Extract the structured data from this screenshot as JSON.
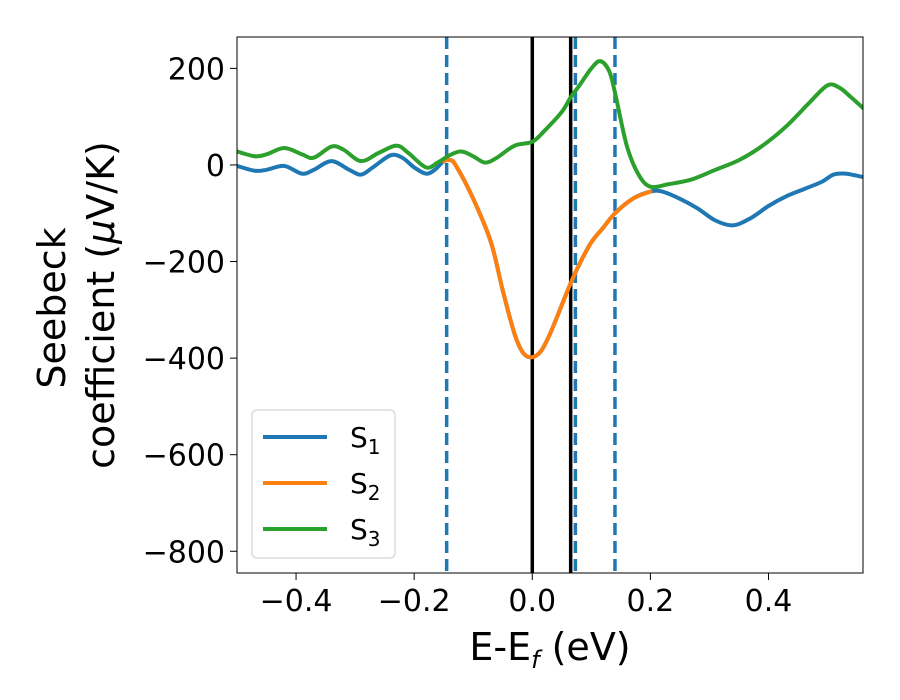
{
  "chart_data": {
    "type": "line",
    "title": "",
    "xlabel": {
      "base": "E-E",
      "sub": "f",
      "suffix": " (eV)"
    },
    "ylabel_line1": "Seebeck",
    "ylabel_line2": {
      "prefix": "coefficient  (",
      "mu": "μ",
      "suffix": "V/K)"
    },
    "xlim": [
      -0.5,
      0.56
    ],
    "ylim": [
      -845,
      265
    ],
    "xticks": [
      -0.4,
      -0.2,
      0.0,
      0.2,
      0.4
    ],
    "xtick_labels": [
      "−0.4",
      "−0.2",
      "0.0",
      "0.2",
      "0.4"
    ],
    "yticks": [
      200,
      0,
      -200,
      -400,
      -600,
      -800
    ],
    "ytick_labels": [
      "200",
      "0",
      "−200",
      "−400",
      "−600",
      "−800"
    ],
    "grid": false,
    "legend_position": "bottom-left",
    "vertical_lines": [
      {
        "x": -0.145,
        "style": "dashed",
        "color": "#1f77b4"
      },
      {
        "x": 0.0,
        "style": "solid",
        "color": "#000000"
      },
      {
        "x": 0.065,
        "style": "solid",
        "color": "#000000"
      },
      {
        "x": 0.073,
        "style": "dashed",
        "color": "#1f77b4"
      },
      {
        "x": 0.14,
        "style": "dashed",
        "color": "#1f77b4"
      }
    ],
    "series": [
      {
        "name": "S",
        "sub": "1",
        "color": "#1f77b4",
        "points": [
          [
            -0.5,
            -2
          ],
          [
            -0.47,
            -12
          ],
          [
            -0.45,
            -10
          ],
          [
            -0.42,
            -2
          ],
          [
            -0.39,
            -18
          ],
          [
            -0.37,
            -10
          ],
          [
            -0.34,
            8
          ],
          [
            -0.31,
            -10
          ],
          [
            -0.29,
            -20
          ],
          [
            -0.27,
            -5
          ],
          [
            -0.24,
            20
          ],
          [
            -0.22,
            15
          ],
          [
            -0.2,
            -5
          ],
          [
            -0.18,
            -18
          ],
          [
            -0.165,
            -10
          ],
          [
            -0.15,
            8
          ],
          [
            -0.14,
            10
          ],
          [
            -0.13,
            0
          ],
          [
            -0.1,
            -70
          ],
          [
            -0.07,
            -160
          ],
          [
            -0.05,
            -260
          ],
          [
            -0.03,
            -350
          ],
          [
            -0.015,
            -390
          ],
          [
            0.0,
            -398
          ],
          [
            0.015,
            -385
          ],
          [
            0.03,
            -350
          ],
          [
            0.05,
            -290
          ],
          [
            0.065,
            -245
          ],
          [
            0.08,
            -205
          ],
          [
            0.1,
            -160
          ],
          [
            0.12,
            -130
          ],
          [
            0.14,
            -100
          ],
          [
            0.17,
            -70
          ],
          [
            0.2,
            -55
          ],
          [
            0.22,
            -55
          ],
          [
            0.25,
            -70
          ],
          [
            0.28,
            -90
          ],
          [
            0.31,
            -115
          ],
          [
            0.34,
            -125
          ],
          [
            0.37,
            -110
          ],
          [
            0.4,
            -85
          ],
          [
            0.43,
            -65
          ],
          [
            0.46,
            -50
          ],
          [
            0.49,
            -35
          ],
          [
            0.51,
            -20
          ],
          [
            0.53,
            -18
          ],
          [
            0.56,
            -25
          ]
        ]
      },
      {
        "name": "S",
        "sub": "2",
        "color": "#ff7f0e",
        "points": [
          [
            -0.15,
            8
          ],
          [
            -0.14,
            10
          ],
          [
            -0.13,
            0
          ],
          [
            -0.1,
            -70
          ],
          [
            -0.07,
            -160
          ],
          [
            -0.05,
            -260
          ],
          [
            -0.03,
            -350
          ],
          [
            -0.015,
            -390
          ],
          [
            0.0,
            -398
          ],
          [
            0.015,
            -385
          ],
          [
            0.03,
            -350
          ],
          [
            0.05,
            -290
          ],
          [
            0.065,
            -245
          ],
          [
            0.08,
            -205
          ],
          [
            0.1,
            -160
          ],
          [
            0.12,
            -130
          ],
          [
            0.14,
            -100
          ],
          [
            0.17,
            -70
          ],
          [
            0.2,
            -55
          ]
        ]
      },
      {
        "name": "S",
        "sub": "3",
        "color": "#2ca02c",
        "points": [
          [
            -0.5,
            28
          ],
          [
            -0.47,
            18
          ],
          [
            -0.45,
            22
          ],
          [
            -0.42,
            35
          ],
          [
            -0.39,
            22
          ],
          [
            -0.37,
            15
          ],
          [
            -0.34,
            38
          ],
          [
            -0.32,
            32
          ],
          [
            -0.29,
            8
          ],
          [
            -0.26,
            25
          ],
          [
            -0.23,
            40
          ],
          [
            -0.21,
            25
          ],
          [
            -0.18,
            -5
          ],
          [
            -0.16,
            5
          ],
          [
            -0.14,
            20
          ],
          [
            -0.12,
            28
          ],
          [
            -0.1,
            18
          ],
          [
            -0.08,
            5
          ],
          [
            -0.06,
            15
          ],
          [
            -0.03,
            40
          ],
          [
            0.0,
            48
          ],
          [
            0.02,
            70
          ],
          [
            0.05,
            110
          ],
          [
            0.065,
            140
          ],
          [
            0.08,
            165
          ],
          [
            0.1,
            200
          ],
          [
            0.115,
            215
          ],
          [
            0.13,
            195
          ],
          [
            0.14,
            150
          ],
          [
            0.16,
            40
          ],
          [
            0.18,
            -20
          ],
          [
            0.2,
            -45
          ],
          [
            0.23,
            -40
          ],
          [
            0.27,
            -30
          ],
          [
            0.31,
            -10
          ],
          [
            0.35,
            10
          ],
          [
            0.39,
            40
          ],
          [
            0.43,
            80
          ],
          [
            0.47,
            130
          ],
          [
            0.5,
            165
          ],
          [
            0.52,
            160
          ],
          [
            0.54,
            140
          ],
          [
            0.56,
            118
          ]
        ]
      }
    ]
  }
}
